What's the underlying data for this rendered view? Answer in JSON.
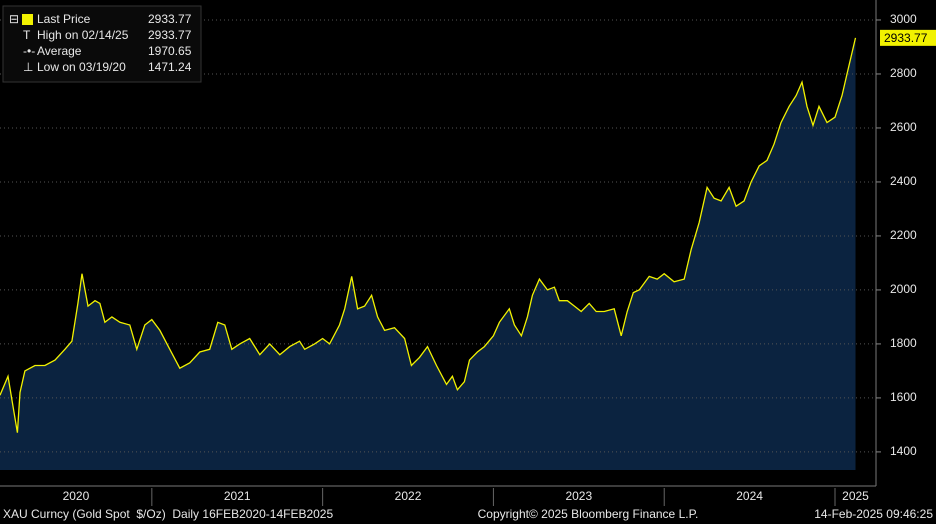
{
  "chart_data": {
    "type": "area",
    "series": [
      {
        "name": "Last Price",
        "color": "#f2f200",
        "fill": "#0b2340",
        "x": [
          2020.111,
          2020.158,
          2020.213,
          2020.228,
          2020.257,
          2020.316,
          2020.374,
          2020.433,
          2020.491,
          2020.532,
          2020.567,
          2020.591,
          2020.626,
          2020.667,
          2020.696,
          2020.725,
          2020.766,
          2020.813,
          2020.871,
          2020.912,
          2020.959,
          2021.0,
          2021.047,
          2021.105,
          2021.164,
          2021.222,
          2021.281,
          2021.339,
          2021.386,
          2021.427,
          2021.468,
          2021.515,
          2021.573,
          2021.632,
          2021.69,
          2021.749,
          2021.807,
          2021.865,
          2021.895,
          2021.953,
          2022.0,
          2022.041,
          2022.099,
          2022.129,
          2022.17,
          2022.205,
          2022.246,
          2022.287,
          2022.322,
          2022.363,
          2022.421,
          2022.48,
          2022.52,
          2022.567,
          2022.614,
          2022.667,
          2022.725,
          2022.76,
          2022.789,
          2022.83,
          2022.86,
          2022.906,
          2022.947,
          2023.0,
          2023.035,
          2023.093,
          2023.123,
          2023.164,
          2023.199,
          2023.228,
          2023.269,
          2023.316,
          2023.357,
          2023.386,
          2023.433,
          2023.474,
          2023.514,
          2023.561,
          2023.602,
          2023.649,
          2023.707,
          2023.748,
          2023.783,
          2023.819,
          2023.854,
          2023.912,
          2023.959,
          2024.0,
          2024.058,
          2024.117,
          2024.158,
          2024.205,
          2024.251,
          2024.292,
          2024.333,
          2024.38,
          2024.421,
          2024.468,
          2024.509,
          2024.556,
          2024.602,
          2024.643,
          2024.684,
          2024.731,
          2024.772,
          2024.807,
          2024.836,
          2024.871,
          2024.906,
          2024.953,
          2025.0,
          2025.041,
          2025.07,
          2025.12
        ],
        "values": [
          1610,
          1680,
          1471.24,
          1620,
          1700,
          1720,
          1720,
          1740,
          1780,
          1810,
          1950,
          2060,
          1940,
          1960,
          1950,
          1880,
          1900,
          1880,
          1870,
          1780,
          1870,
          1890,
          1850,
          1780,
          1710,
          1730,
          1770,
          1780,
          1880,
          1870,
          1780,
          1800,
          1820,
          1760,
          1800,
          1760,
          1790,
          1810,
          1780,
          1800,
          1820,
          1800,
          1870,
          1930,
          2050,
          1930,
          1940,
          1980,
          1900,
          1850,
          1860,
          1820,
          1720,
          1750,
          1790,
          1720,
          1650,
          1680,
          1630,
          1660,
          1740,
          1770,
          1790,
          1830,
          1880,
          1930,
          1870,
          1830,
          1900,
          1980,
          2040,
          2000,
          2010,
          1960,
          1960,
          1940,
          1920,
          1950,
          1920,
          1920,
          1930,
          1830,
          1920,
          1990,
          2000,
          2050,
          2040,
          2060,
          2030,
          2040,
          2150,
          2250,
          2380,
          2340,
          2330,
          2380,
          2310,
          2330,
          2400,
          2460,
          2480,
          2540,
          2620,
          2680,
          2720,
          2770,
          2680,
          2610,
          2680,
          2620,
          2640,
          2720,
          2800,
          2933.77
        ]
      }
    ],
    "xlim": [
      2020.111,
      2025.24
    ],
    "ylim": [
      1333,
      3074
    ],
    "xticks": [
      2020,
      2021,
      2022,
      2023,
      2024,
      2025
    ],
    "yticks": [
      1400,
      1600,
      1800,
      2000,
      2200,
      2400,
      2600,
      2800,
      3000
    ],
    "grid": true,
    "stats": [
      {
        "label": "High on 02/14/25",
        "value": 2933.77
      },
      {
        "label": "Average",
        "value": 1970.65
      },
      {
        "label": "Low on 03/19/20",
        "value": 1471.24
      }
    ]
  },
  "footer": {
    "left": "XAU Curncy (Gold Spot  $/Oz)  Daily 16FEB2020-14FEB2025",
    "center": "Copyright© 2025 Bloomberg Finance L.P.",
    "right": "14-Feb-2025 09:46:25"
  }
}
